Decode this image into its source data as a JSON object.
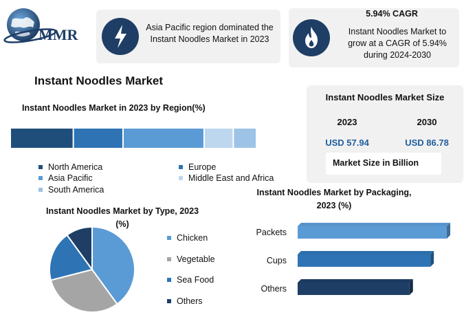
{
  "logo": {
    "text": "MMR",
    "icon": "globe-icon"
  },
  "cards": [
    {
      "icon": "lightning-icon",
      "text": "Asia Pacific region dominated the Instant Noodles Market in 2023"
    },
    {
      "icon": "flame-icon",
      "heading": "5.94% CAGR",
      "text": "Instant Noodles Market to grow at a CAGR of 5.94% during 2024-2030"
    }
  ],
  "main_title": "Instant Noodles Market",
  "market_size": {
    "title": "Instant Noodles Market Size",
    "years": [
      "2023",
      "2030"
    ],
    "values": [
      "USD 57.94",
      "USD 86.78"
    ],
    "unit_label": "Market Size in Billion"
  },
  "colors": {
    "navy": "#1e3e66",
    "dark_blue": "#1f4e7a",
    "blue": "#2e74b5",
    "mid_blue": "#5b9bd5",
    "light_blue": "#bdd7ee",
    "pale_blue": "#9dc3e6",
    "grey": "#a5a5a5",
    "value_text": "#1f5e9e"
  },
  "chart_data": [
    {
      "type": "bar",
      "orientation": "stacked-horizontal",
      "title": "Instant Noodles Market in 2023 by Region(%)",
      "categories": [
        "North America",
        "Europe",
        "Asia Pacific",
        "Middle East and Africa",
        "South America"
      ],
      "values": [
        25.5,
        20,
        33,
        11.5,
        9
      ],
      "colors": [
        "#1f4e7a",
        "#2e74b5",
        "#5b9bd5",
        "#bdd7ee",
        "#9dc3e6"
      ],
      "legend": "bottom"
    },
    {
      "type": "pie",
      "title_lines": [
        "Instant Noodles Market by Type, 2023",
        "(%)"
      ],
      "categories": [
        "Chicken",
        "Vegetable",
        "Sea Food",
        "Others"
      ],
      "values": [
        40,
        31,
        19,
        10
      ],
      "colors": [
        "#5b9bd5",
        "#a5a5a5",
        "#2e74b5",
        "#1e3e66"
      ],
      "legend": "right"
    },
    {
      "type": "bar",
      "orientation": "horizontal",
      "title_lines": [
        "Instant Noodles Market by Packaging,",
        "2023  (%)"
      ],
      "categories": [
        "Packets",
        "Cups",
        "Others"
      ],
      "values": [
        100,
        89,
        75
      ],
      "colors": [
        "#5b9bd5",
        "#2e74b5",
        "#1e3e66"
      ],
      "xlim": [
        0,
        100
      ],
      "grid": false
    }
  ]
}
